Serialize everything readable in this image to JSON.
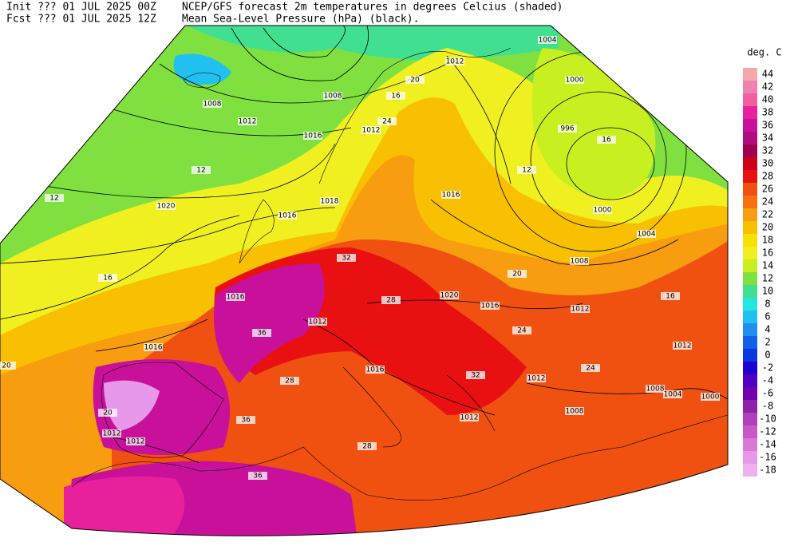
{
  "header": {
    "init": "Init  ??? 01 JUL 2025 00Z",
    "fcst": "Fcst ??? 01 JUL 2025 12Z",
    "title": "NCEP/GFS forecast 2m temperatures in degrees Celcius (shaded)",
    "subtitle": "Mean Sea-Level Pressure (hPa) (black)."
  },
  "colorbar": {
    "title": "deg. C",
    "ticks": [
      44,
      42,
      40,
      38,
      36,
      34,
      32,
      30,
      28,
      26,
      24,
      22,
      20,
      18,
      16,
      14,
      12,
      10,
      8,
      6,
      4,
      2,
      0,
      -2,
      -4,
      -6,
      -8,
      -10,
      -12,
      -14,
      -16,
      -18
    ],
    "colors": [
      "#f4a8a8",
      "#f080b0",
      "#f060a0",
      "#e8209c",
      "#c8109a",
      "#b00c80",
      "#a00050",
      "#d00018",
      "#e81010",
      "#f05010",
      "#f87010",
      "#f89c10",
      "#f8c000",
      "#f8e000",
      "#f0f020",
      "#c8f020",
      "#80e040",
      "#40e090",
      "#20e8e0",
      "#20c0f0",
      "#2090f0",
      "#1060e8",
      "#0838e0",
      "#2000d0",
      "#5000c0",
      "#7000b0",
      "#9020a8",
      "#b040b8",
      "#c858c8",
      "#d878d8",
      "#e898e8",
      "#f0b0f0"
    ]
  },
  "map_labels": [
    "1004",
    "1012",
    "1000",
    "1008",
    "1008",
    "1012",
    "1016",
    "1012",
    "996",
    "1016",
    "1018",
    "1016",
    "1020",
    "1000",
    "1004",
    "1008",
    "1020",
    "1016",
    "1016",
    "1012",
    "1012",
    "1012",
    "1016",
    "1016",
    "1012",
    "1008",
    "1004",
    "1000",
    "1008",
    "1012",
    "1012",
    "1012",
    "20",
    "16",
    "24",
    "12",
    "16",
    "12",
    "20",
    "28",
    "28",
    "36",
    "36",
    "24",
    "16",
    "20",
    "24",
    "32",
    "20",
    "12",
    "32",
    "36",
    "28",
    "16"
  ]
}
